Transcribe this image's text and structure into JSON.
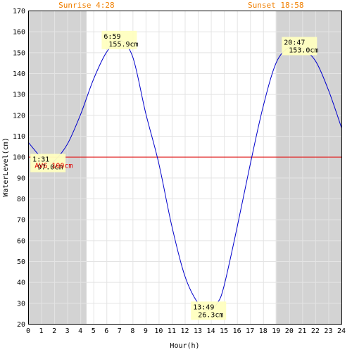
{
  "chart_data": {
    "type": "line",
    "xlabel": "Hour(h)",
    "ylabel": "WaterLevel(cm)",
    "xlim": [
      0,
      24
    ],
    "ylim": [
      20,
      170
    ],
    "x_ticks": [
      "0",
      "1",
      "2",
      "3",
      "4",
      "5",
      "6",
      "7",
      "8",
      "9",
      "10",
      "11",
      "12",
      "13",
      "14",
      "15",
      "16",
      "17",
      "18",
      "19",
      "20",
      "21",
      "22",
      "23",
      "24"
    ],
    "y_ticks": [
      "20",
      "30",
      "40",
      "50",
      "60",
      "70",
      "80",
      "90",
      "100",
      "110",
      "120",
      "130",
      "140",
      "150",
      "160",
      "170"
    ],
    "grid": true,
    "sunrise_label": "Sunrise 4:28",
    "sunset_label": "Sunset 18:58",
    "night_ranges": [
      [
        0,
        4.47
      ],
      [
        18.97,
        24
      ]
    ],
    "average": {
      "value": 100,
      "label": "AVG 100cm",
      "color": "#e00000"
    },
    "series": [
      {
        "color": "#0000cc",
        "x": [
          0,
          1,
          1.52,
          2,
          3,
          4,
          5,
          6,
          6.98,
          8,
          9,
          10,
          11,
          12,
          13,
          13.82,
          14.5,
          15,
          16,
          17,
          18,
          19,
          20,
          20.78,
          21,
          22,
          23,
          24
        ],
        "y": [
          107,
          99.5,
          97.0,
          98,
          106,
          120,
          137,
          150,
          155.9,
          148,
          121,
          97,
          67,
          43,
          30,
          26.3,
          30,
          38,
          66,
          96,
          124,
          145,
          152.5,
          153.0,
          152,
          146,
          132,
          114
        ]
      }
    ],
    "annotations": [
      {
        "x": 1.52,
        "y": 97.0,
        "time": "1:31",
        "value": "97.0cm"
      },
      {
        "x": 6.98,
        "y": 155.9,
        "time": "6:59",
        "value": "155.9cm"
      },
      {
        "x": 13.82,
        "y": 26.3,
        "time": "13:49",
        "value": "26.3cm"
      },
      {
        "x": 20.78,
        "y": 153.0,
        "time": "20:47",
        "value": "153.0cm"
      }
    ]
  }
}
